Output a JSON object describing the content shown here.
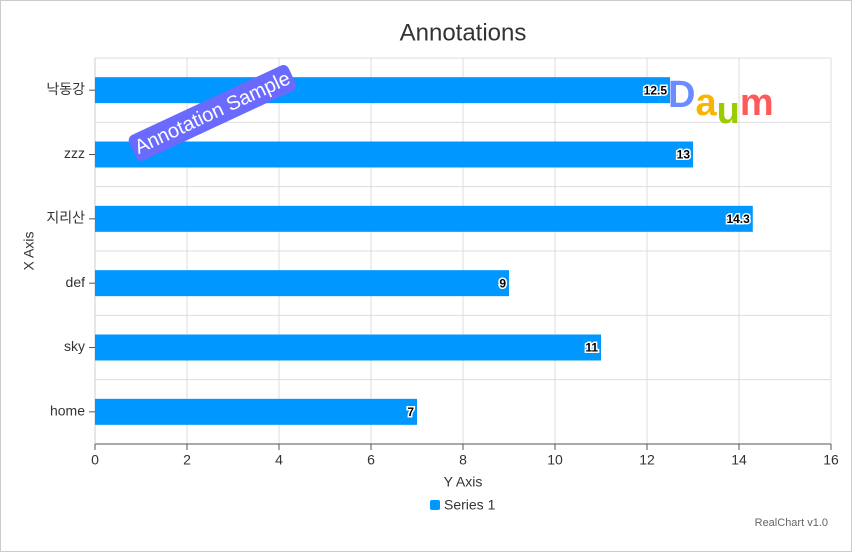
{
  "chart_data": {
    "type": "bar",
    "orientation": "horizontal",
    "title": "Annotations",
    "categories": [
      "낙동강",
      "zzz",
      "지리산",
      "def",
      "sky",
      "home"
    ],
    "series": [
      {
        "name": "Series 1",
        "color": "#0098ff",
        "values": [
          12.5,
          13,
          14.3,
          9,
          11,
          7
        ]
      }
    ],
    "x_axis_label": "X Axis",
    "y_axis_label": "Y Axis",
    "ylim": [
      0,
      16
    ],
    "yticks": [
      0,
      2,
      4,
      6,
      8,
      10,
      12,
      14,
      16
    ],
    "grid": true,
    "annotation": "Annotation Sample",
    "logo": "Daum",
    "logo_colors": [
      "#6b8cff",
      "#f7b500",
      "#9ccc00",
      "#ff5a5a"
    ],
    "credit": "RealChart v1.0"
  }
}
